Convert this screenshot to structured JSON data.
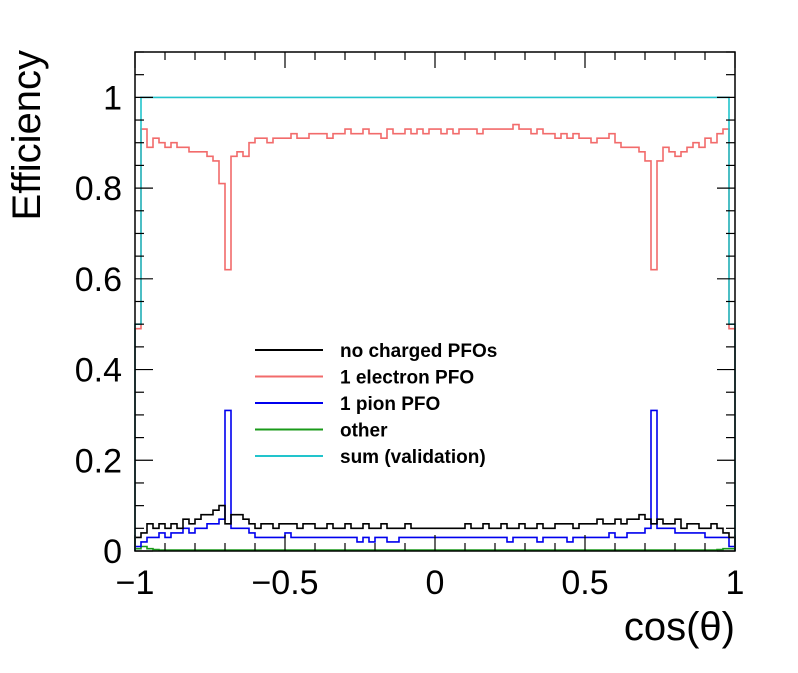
{
  "chart_data": {
    "type": "line",
    "xlabel": "cos(θ)",
    "ylabel": "Efficiency",
    "xlim": [
      -1,
      1
    ],
    "ylim": [
      0,
      1.1
    ],
    "x_ticks": [
      {
        "value": -1,
        "label": "−1"
      },
      {
        "value": -0.5,
        "label": "−0.5"
      },
      {
        "value": 0,
        "label": "0"
      },
      {
        "value": 0.5,
        "label": "0.5"
      },
      {
        "value": 1,
        "label": "1"
      }
    ],
    "y_ticks": [
      {
        "value": 0,
        "label": "0"
      },
      {
        "value": 0.2,
        "label": "0.2"
      },
      {
        "value": 0.4,
        "label": "0.4"
      },
      {
        "value": 0.6,
        "label": "0.6"
      },
      {
        "value": 0.8,
        "label": "0.8"
      },
      {
        "value": 1,
        "label": "1"
      }
    ],
    "grid": false,
    "legend_position": "center",
    "bin_edges_start": -1.0,
    "bin_width": 0.02,
    "series": [
      {
        "name": "no charged PFOs",
        "color": "#000000",
        "values": [
          0.03,
          0.04,
          0.06,
          0.05,
          0.06,
          0.05,
          0.06,
          0.05,
          0.07,
          0.06,
          0.07,
          0.08,
          0.08,
          0.09,
          0.1,
          0.06,
          0.08,
          0.08,
          0.07,
          0.06,
          0.05,
          0.06,
          0.06,
          0.05,
          0.06,
          0.06,
          0.06,
          0.05,
          0.06,
          0.06,
          0.05,
          0.05,
          0.06,
          0.05,
          0.05,
          0.06,
          0.05,
          0.05,
          0.06,
          0.05,
          0.05,
          0.06,
          0.05,
          0.05,
          0.05,
          0.06,
          0.05,
          0.05,
          0.05,
          0.05,
          0.05,
          0.05,
          0.05,
          0.05,
          0.05,
          0.06,
          0.05,
          0.05,
          0.06,
          0.05,
          0.05,
          0.06,
          0.05,
          0.05,
          0.06,
          0.05,
          0.05,
          0.06,
          0.05,
          0.05,
          0.06,
          0.06,
          0.06,
          0.05,
          0.06,
          0.06,
          0.06,
          0.07,
          0.06,
          0.06,
          0.07,
          0.06,
          0.07,
          0.07,
          0.08,
          0.07,
          0.06,
          0.07,
          0.06,
          0.06,
          0.07,
          0.05,
          0.06,
          0.06,
          0.05,
          0.05,
          0.06,
          0.05,
          0.04,
          0.03
        ]
      },
      {
        "name": "1 electron PFO",
        "color": "#f26b6b",
        "values": [
          0.49,
          0.93,
          0.89,
          0.91,
          0.9,
          0.89,
          0.9,
          0.89,
          0.89,
          0.88,
          0.88,
          0.88,
          0.87,
          0.86,
          0.81,
          0.62,
          0.87,
          0.88,
          0.87,
          0.9,
          0.91,
          0.91,
          0.9,
          0.91,
          0.91,
          0.91,
          0.92,
          0.91,
          0.91,
          0.92,
          0.92,
          0.92,
          0.91,
          0.92,
          0.92,
          0.93,
          0.92,
          0.92,
          0.93,
          0.92,
          0.92,
          0.91,
          0.93,
          0.92,
          0.92,
          0.93,
          0.92,
          0.93,
          0.92,
          0.93,
          0.93,
          0.92,
          0.93,
          0.92,
          0.93,
          0.93,
          0.93,
          0.92,
          0.93,
          0.93,
          0.93,
          0.93,
          0.93,
          0.94,
          0.93,
          0.93,
          0.92,
          0.93,
          0.92,
          0.92,
          0.91,
          0.92,
          0.91,
          0.92,
          0.91,
          0.91,
          0.9,
          0.91,
          0.91,
          0.92,
          0.9,
          0.89,
          0.89,
          0.89,
          0.88,
          0.86,
          0.62,
          0.86,
          0.89,
          0.88,
          0.87,
          0.88,
          0.89,
          0.9,
          0.89,
          0.91,
          0.9,
          0.92,
          0.93,
          0.49
        ]
      },
      {
        "name": "1 pion PFO",
        "color": "#0000ee",
        "values": [
          0.01,
          0.02,
          0.03,
          0.03,
          0.04,
          0.03,
          0.04,
          0.04,
          0.05,
          0.04,
          0.05,
          0.05,
          0.06,
          0.06,
          0.07,
          0.31,
          0.05,
          0.05,
          0.05,
          0.04,
          0.03,
          0.03,
          0.03,
          0.03,
          0.03,
          0.04,
          0.03,
          0.03,
          0.03,
          0.03,
          0.03,
          0.03,
          0.03,
          0.03,
          0.03,
          0.03,
          0.03,
          0.02,
          0.03,
          0.02,
          0.03,
          0.03,
          0.02,
          0.02,
          0.03,
          0.03,
          0.03,
          0.03,
          0.03,
          0.03,
          0.03,
          0.03,
          0.03,
          0.03,
          0.03,
          0.03,
          0.03,
          0.03,
          0.03,
          0.03,
          0.03,
          0.03,
          0.02,
          0.03,
          0.03,
          0.03,
          0.03,
          0.02,
          0.03,
          0.03,
          0.03,
          0.03,
          0.02,
          0.03,
          0.03,
          0.03,
          0.03,
          0.03,
          0.03,
          0.04,
          0.03,
          0.03,
          0.04,
          0.04,
          0.04,
          0.05,
          0.31,
          0.05,
          0.05,
          0.05,
          0.04,
          0.04,
          0.04,
          0.04,
          0.04,
          0.03,
          0.03,
          0.03,
          0.03,
          0.01
        ]
      },
      {
        "name": "other",
        "color": "#1a9a1a",
        "values": [
          0.005,
          0.01,
          0.005,
          0.003,
          0.002,
          0.002,
          0.002,
          0.002,
          0.002,
          0.002,
          0.002,
          0.002,
          0.002,
          0.002,
          0.002,
          0.002,
          0.002,
          0.002,
          0.002,
          0.002,
          0.002,
          0.002,
          0.002,
          0.002,
          0.002,
          0.002,
          0.002,
          0.002,
          0.002,
          0.002,
          0.002,
          0.002,
          0.002,
          0.002,
          0.002,
          0.002,
          0.002,
          0.002,
          0.002,
          0.002,
          0.002,
          0.002,
          0.002,
          0.002,
          0.002,
          0.002,
          0.002,
          0.002,
          0.002,
          0.002,
          0.002,
          0.002,
          0.002,
          0.002,
          0.002,
          0.002,
          0.002,
          0.002,
          0.002,
          0.002,
          0.002,
          0.002,
          0.002,
          0.002,
          0.002,
          0.002,
          0.002,
          0.002,
          0.002,
          0.002,
          0.002,
          0.002,
          0.002,
          0.002,
          0.002,
          0.002,
          0.002,
          0.002,
          0.002,
          0.002,
          0.002,
          0.002,
          0.002,
          0.002,
          0.002,
          0.002,
          0.002,
          0.002,
          0.002,
          0.002,
          0.002,
          0.002,
          0.002,
          0.002,
          0.002,
          0.002,
          0.002,
          0.003,
          0.005,
          0.005
        ]
      },
      {
        "name": "sum (validation)",
        "color": "#22c4cc",
        "values": [
          0.5,
          1,
          1,
          1,
          1,
          1,
          1,
          1,
          1,
          1,
          1,
          1,
          1,
          1,
          1,
          1,
          1,
          1,
          1,
          1,
          1,
          1,
          1,
          1,
          1,
          1,
          1,
          1,
          1,
          1,
          1,
          1,
          1,
          1,
          1,
          1,
          1,
          1,
          1,
          1,
          1,
          1,
          1,
          1,
          1,
          1,
          1,
          1,
          1,
          1,
          1,
          1,
          1,
          1,
          1,
          1,
          1,
          1,
          1,
          1,
          1,
          1,
          1,
          1,
          1,
          1,
          1,
          1,
          1,
          1,
          1,
          1,
          1,
          1,
          1,
          1,
          1,
          1,
          1,
          1,
          1,
          1,
          1,
          1,
          1,
          1,
          1,
          1,
          1,
          1,
          1,
          1,
          1,
          1,
          1,
          1,
          1,
          1,
          1,
          0.5
        ]
      }
    ]
  }
}
